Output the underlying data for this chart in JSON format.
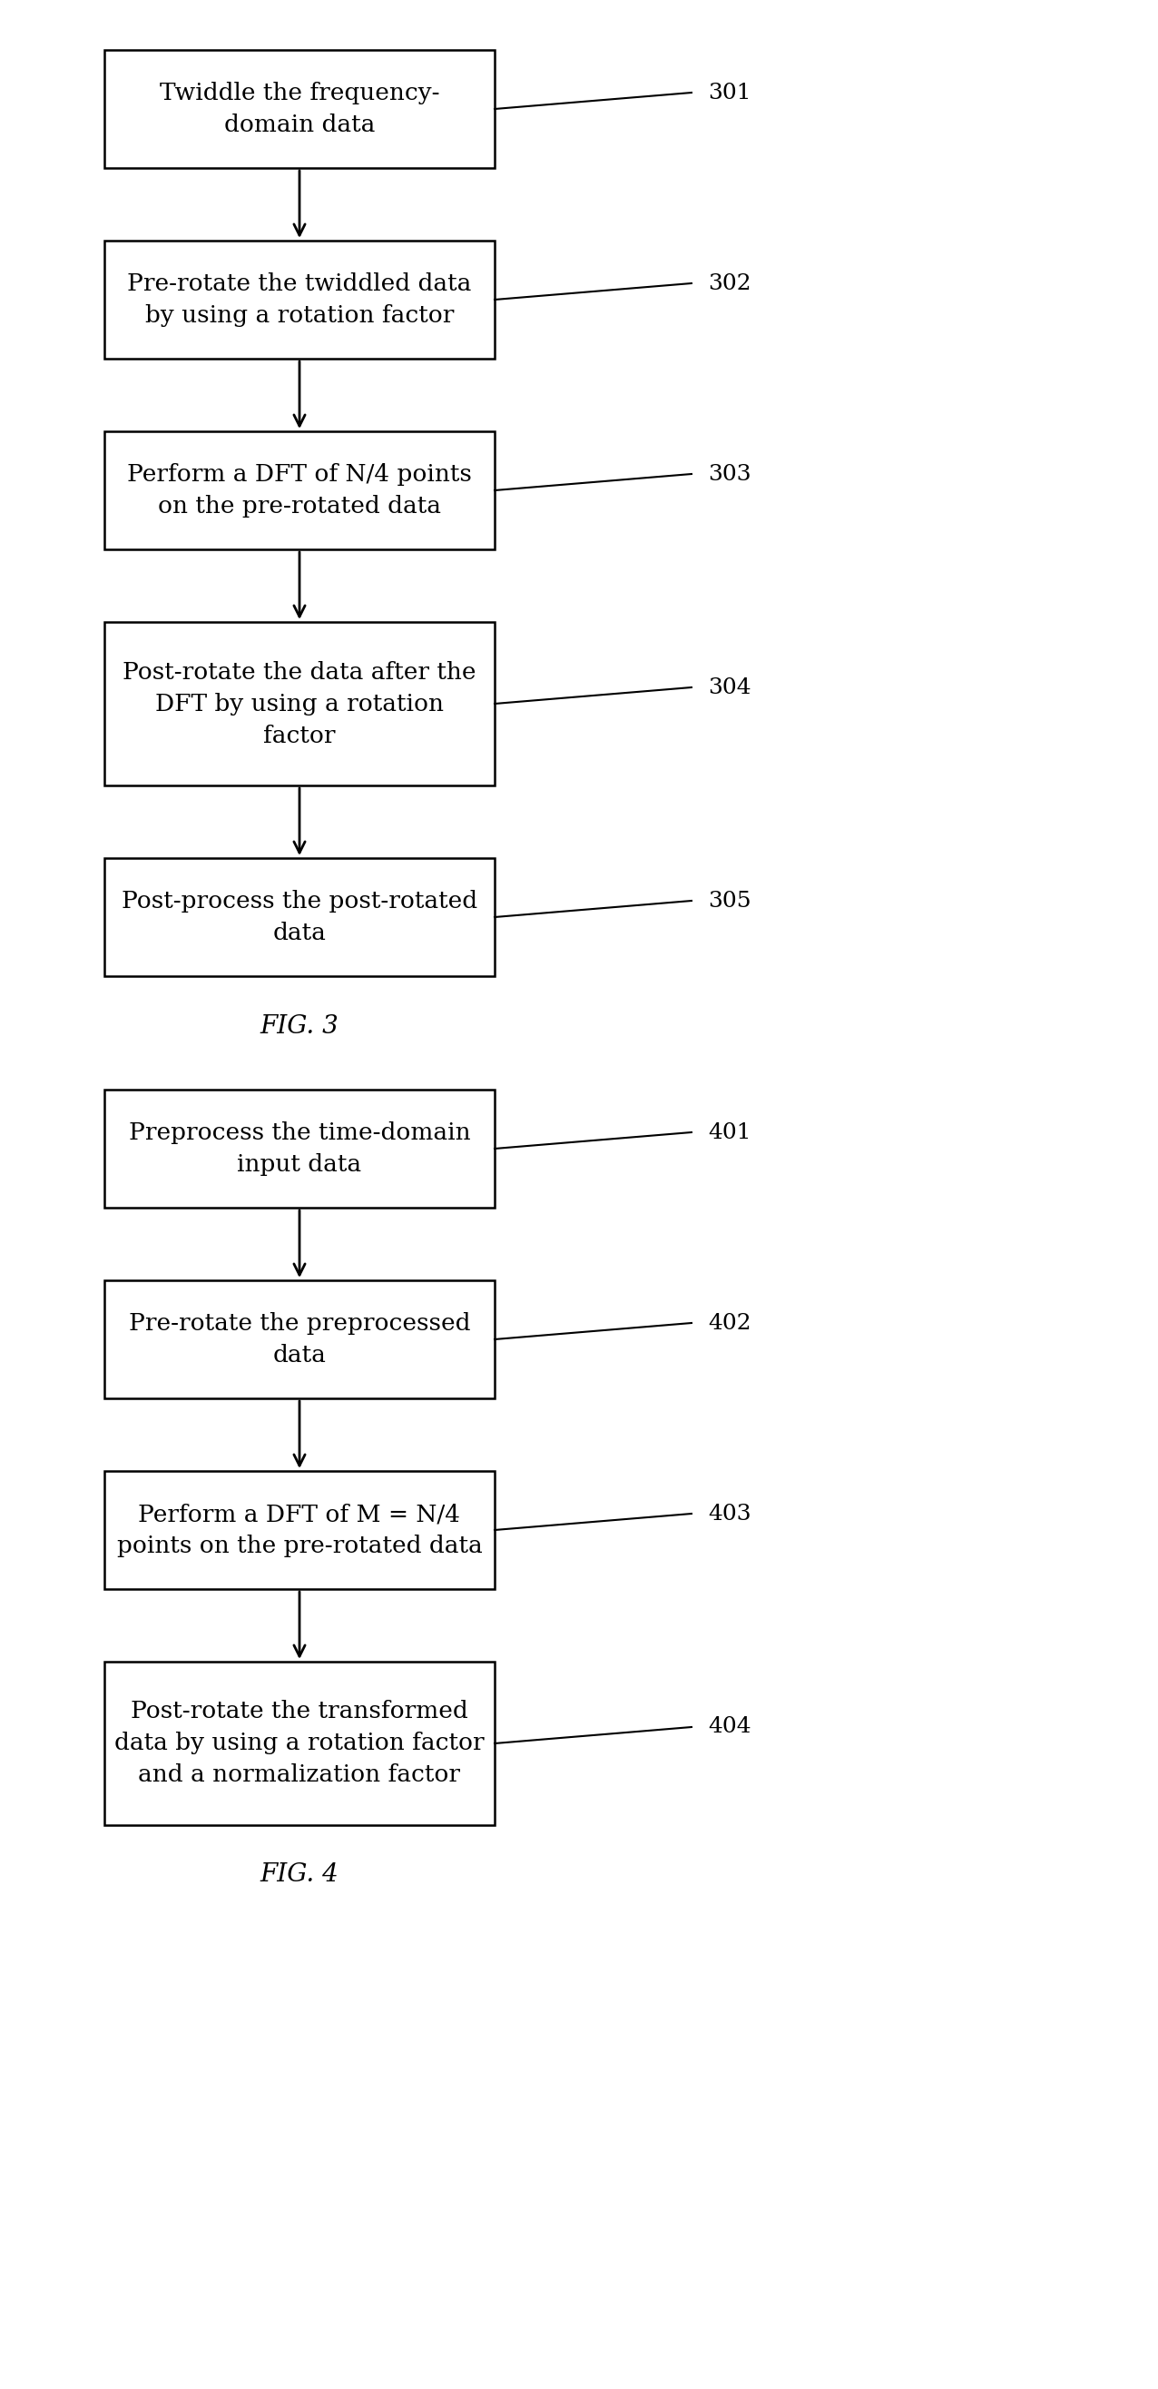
{
  "fig3_boxes": [
    {
      "label": "Twiddle the frequency-\ndomain data",
      "ref": "301",
      "lines": 2
    },
    {
      "label": "Pre-rotate the twiddled data\nby using a rotation factor",
      "ref": "302",
      "lines": 2
    },
    {
      "label": "Perform a DFT of N/4 points\non the pre-rotated data",
      "ref": "303",
      "lines": 2
    },
    {
      "label": "Post-rotate the data after the\nDFT by using a rotation\nfactor",
      "ref": "304",
      "lines": 3
    },
    {
      "label": "Post-process the post-rotated\ndata",
      "ref": "305",
      "lines": 2
    }
  ],
  "fig4_boxes": [
    {
      "label": "Preprocess the time-domain\ninput data",
      "ref": "401",
      "lines": 2
    },
    {
      "label": "Pre-rotate the preprocessed\ndata",
      "ref": "402",
      "lines": 2
    },
    {
      "label": "Perform a DFT of M = N/4\npoints on the pre-rotated data",
      "ref": "403",
      "lines": 2
    },
    {
      "label": "Post-rotate the transformed\ndata by using a rotation factor\nand a normalization factor",
      "ref": "404",
      "lines": 3
    }
  ],
  "fig3_title": "FIG. 3",
  "fig4_title": "FIG. 4",
  "box_color": "#ffffff",
  "border_color": "#000000",
  "text_color": "#000000",
  "arrow_color": "#000000",
  "ref_color": "#000000",
  "font_size": 19,
  "ref_font_size": 18,
  "title_font_size": 20,
  "background_color": "#ffffff"
}
